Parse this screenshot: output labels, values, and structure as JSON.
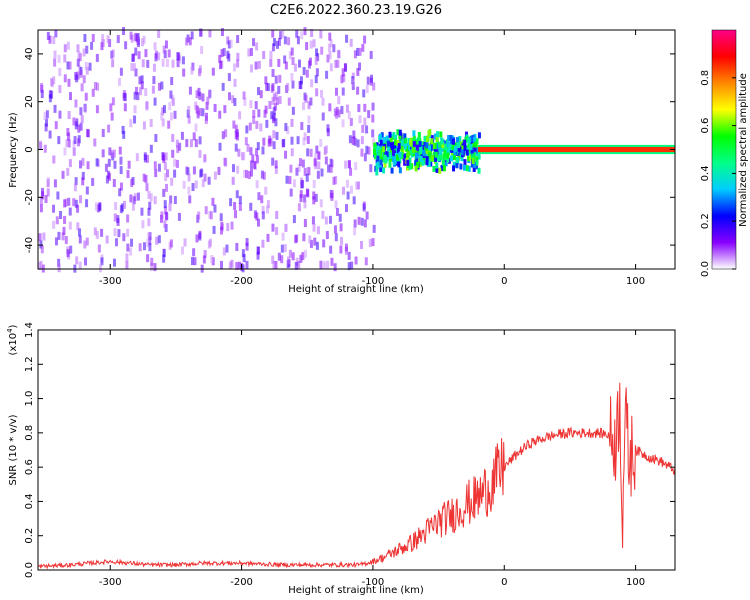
{
  "title": "C2E6.2022.360.23.19.G26",
  "chart_data": [
    {
      "type": "heatmap",
      "xlabel": "Height of straight line (km)",
      "ylabel": "Frequency (Hz)",
      "xlim": [
        -355,
        130
      ],
      "ylim": [
        -50,
        50
      ],
      "xticks": [
        -300,
        -200,
        -100,
        0,
        100
      ],
      "yticks": [
        -40,
        -20,
        0,
        20,
        40
      ],
      "colorbar": {
        "label": "Normalized spectral amplitude",
        "range": [
          0,
          1
        ],
        "ticks": [
          0.0,
          0.2,
          0.4,
          0.6,
          0.8
        ],
        "colors": [
          "#ffffff",
          "#8800ff",
          "#0000ff",
          "#00ccff",
          "#00ff88",
          "#00ff00",
          "#ffff00",
          "#ff8800",
          "#ff0000",
          "#ff0088"
        ]
      },
      "regions": [
        {
          "x_range": [
            -355,
            -100
          ],
          "freq_spread": [
            -50,
            50
          ],
          "amplitude": 0.1
        },
        {
          "x_range": [
            -100,
            -20
          ],
          "freq_center": 0,
          "freq_spread": [
            -10,
            8
          ],
          "amplitude": 0.35
        },
        {
          "x_range": [
            -20,
            130
          ],
          "freq_center": 0,
          "freq_spread": [
            -1.5,
            1.5
          ],
          "amplitude": 0.85
        }
      ],
      "grid": false
    },
    {
      "type": "line",
      "xlabel": "Height of straight line (km)",
      "ylabel": "SNR (10 * v/v)",
      "y_multiplier": "(x10",
      "y_multiplier_exp": "4",
      "y_multiplier_close": ")",
      "xlim": [
        -355,
        130
      ],
      "ylim": [
        0,
        1.4
      ],
      "xticks": [
        -300,
        -200,
        -100,
        0,
        100
      ],
      "yticks": [
        0.0,
        0.2,
        0.4,
        0.6,
        0.8,
        1.0,
        1.2,
        1.4
      ],
      "series": [
        {
          "color": "#ee3333",
          "x": [
            -355,
            -330,
            -300,
            -270,
            -250,
            -230,
            -200,
            -170,
            -150,
            -120,
            -110,
            -100,
            -90,
            -80,
            -70,
            -60,
            -50,
            -40,
            -30,
            -20,
            -15,
            -10,
            0,
            10,
            20,
            30,
            40,
            50,
            60,
            70,
            80,
            85,
            88,
            90,
            92,
            95,
            100,
            110,
            120,
            130
          ],
          "y": [
            0.02,
            0.03,
            0.05,
            0.03,
            0.03,
            0.04,
            0.04,
            0.03,
            0.03,
            0.03,
            0.03,
            0.05,
            0.08,
            0.12,
            0.16,
            0.22,
            0.28,
            0.32,
            0.38,
            0.42,
            0.46,
            0.5,
            0.6,
            0.68,
            0.74,
            0.77,
            0.79,
            0.8,
            0.8,
            0.8,
            0.79,
            0.75,
            1.0,
            0.3,
            0.9,
            0.65,
            0.7,
            0.66,
            0.63,
            0.58
          ]
        }
      ],
      "grid": false
    }
  ]
}
